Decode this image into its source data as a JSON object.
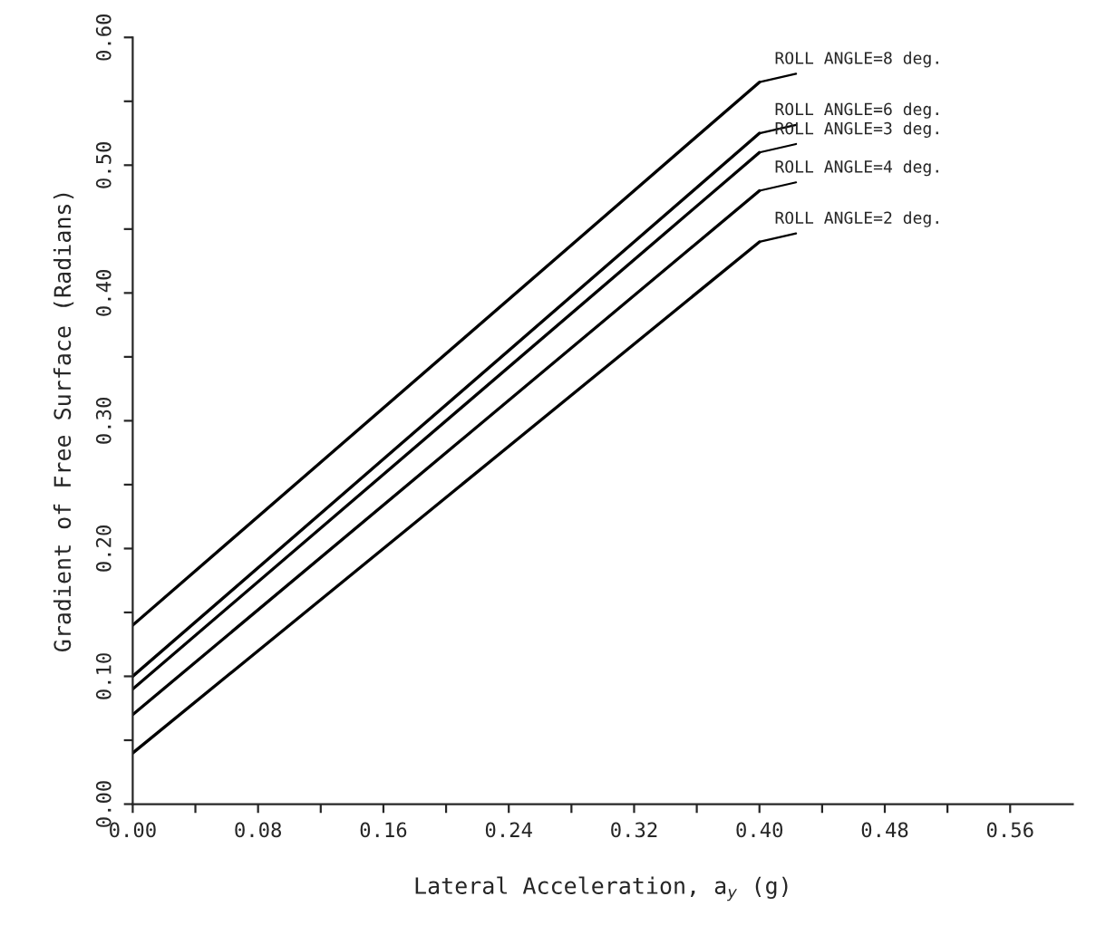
{
  "chart_data": {
    "type": "line",
    "xlabel": "Lateral Acceleration, a$_{y}$ (g)",
    "ylabel": "Gradient of Free Surface (Radians)",
    "x": [
      0.0,
      0.4
    ],
    "series": [
      {
        "name": "ROLL ANGLE=8 deg.",
        "color": "#000000",
        "values": [
          0.14,
          0.565
        ]
      },
      {
        "name": "ROLL ANGLE=6 deg.",
        "color": "#000000",
        "values": [
          0.1,
          0.525
        ]
      },
      {
        "name": "ROLL ANGLE=3 deg.",
        "color": "#000000",
        "values": [
          0.09,
          0.51
        ]
      },
      {
        "name": "ROLL ANGLE=4 deg.",
        "color": "#000000",
        "values": [
          0.07,
          0.48
        ]
      },
      {
        "name": "ROLL ANGLE=2 deg.",
        "color": "#000000",
        "values": [
          0.04,
          0.44
        ]
      }
    ],
    "xlim": [
      0,
      0.6
    ],
    "ylim": [
      0,
      0.6
    ],
    "xticks": [
      "0.00",
      {
        "value": 0.04,
        "label": null
      },
      {
        "value": 0.08,
        "label": "0.08"
      },
      {
        "value": 0.12,
        "label": null
      },
      {
        "value": 0.16,
        "label": "0.16"
      },
      {
        "value": 0.2,
        "label": null
      },
      {
        "value": 0.24,
        "label": "0.24"
      },
      {
        "value": 0.28,
        "label": null
      },
      {
        "value": 0.32,
        "label": "0.32"
      },
      {
        "value": 0.36,
        "label": null
      },
      {
        "value": 0.4,
        "label": "0.40"
      },
      {
        "value": 0.44,
        "label": null
      },
      {
        "value": 0.48,
        "label": "0.48"
      },
      {
        "value": 0.52,
        "label": null
      },
      {
        "value": 0.56,
        "label": "0.56"
      }
    ],
    "yticks": [
      {
        "value": 0,
        "label": "0.00"
      },
      {
        "value": 0.05,
        "label": null
      },
      {
        "value": 0.1,
        "label": "0.10"
      },
      {
        "value": 0.15,
        "label": null
      },
      {
        "value": 0.2,
        "label": "0.20"
      },
      {
        "value": 0.25,
        "label": null
      },
      {
        "value": 0.3,
        "label": "0.30"
      },
      {
        "value": 0.35,
        "label": null
      },
      {
        "value": 0.4,
        "label": "0.40"
      },
      {
        "value": 0.45,
        "label": null
      },
      {
        "value": 0.5,
        "label": "0.50"
      },
      {
        "value": 0.55,
        "label": null
      },
      {
        "value": 0.6,
        "label": "0.60"
      }
    ],
    "grid": false,
    "legend": false,
    "marker": "none",
    "line_style": "solid"
  }
}
